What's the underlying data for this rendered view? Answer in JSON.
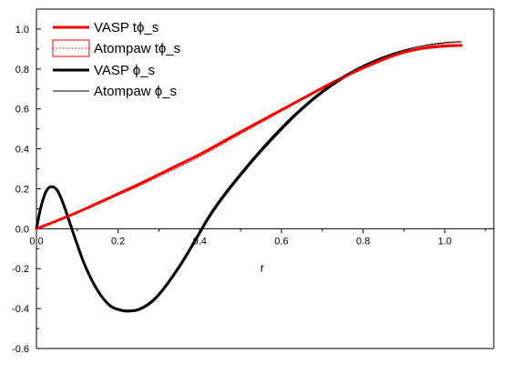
{
  "chart_data": {
    "type": "line",
    "title": "",
    "xlabel": "r",
    "ylabel": "",
    "xlim": [
      0,
      1.12
    ],
    "ylim": [
      -0.6,
      1.1
    ],
    "x_ticks": [
      "0.0",
      "0.2",
      "0.4",
      "0.6",
      "0.8",
      "1.0"
    ],
    "y_ticks": [
      "1.0",
      "0.8",
      "0.6",
      "0.4",
      "0.2",
      "0.0",
      "-0.2",
      "-0.4",
      "-0.6"
    ],
    "grid": false,
    "legend_position": "top-left",
    "series": [
      {
        "name": "VASP tϕ_s",
        "color": "#ff0000",
        "style": "solid",
        "x": [
          0.0,
          0.05,
          0.1,
          0.15,
          0.2,
          0.25,
          0.3,
          0.35,
          0.4,
          0.45,
          0.5,
          0.55,
          0.6,
          0.65,
          0.7,
          0.75,
          0.8,
          0.85,
          0.9,
          0.95,
          1.0,
          1.04
        ],
        "y": [
          0.0,
          0.04,
          0.082,
          0.128,
          0.175,
          0.222,
          0.272,
          0.322,
          0.372,
          0.428,
          0.485,
          0.54,
          0.595,
          0.65,
          0.705,
          0.757,
          0.805,
          0.848,
          0.883,
          0.905,
          0.915,
          0.918
        ]
      },
      {
        "name": "Atompaw tϕ_s",
        "color": "#ff0000",
        "style": "dotted",
        "x": [
          0.0,
          0.05,
          0.1,
          0.15,
          0.2,
          0.25,
          0.3,
          0.35,
          0.4,
          0.45,
          0.5,
          0.55,
          0.6,
          0.65,
          0.7,
          0.75,
          0.8,
          0.85,
          0.9,
          0.95,
          1.0,
          1.04
        ],
        "y": [
          0.0,
          0.038,
          0.078,
          0.122,
          0.168,
          0.213,
          0.262,
          0.31,
          0.362,
          0.418,
          0.475,
          0.532,
          0.588,
          0.645,
          0.7,
          0.754,
          0.805,
          0.85,
          0.888,
          0.913,
          0.928,
          0.935
        ]
      },
      {
        "name": "VASP ϕ_s",
        "color": "#000000",
        "style": "solid-thick",
        "x": [
          0.0,
          0.01,
          0.02,
          0.03,
          0.04,
          0.05,
          0.06,
          0.07,
          0.08,
          0.1,
          0.12,
          0.15,
          0.18,
          0.21,
          0.23,
          0.25,
          0.28,
          0.31,
          0.35,
          0.38,
          0.42,
          0.45,
          0.5,
          0.55,
          0.6,
          0.65,
          0.7,
          0.75,
          0.8,
          0.85,
          0.9,
          0.95,
          1.0,
          1.04
        ],
        "y": [
          0.0,
          0.1,
          0.17,
          0.205,
          0.21,
          0.195,
          0.155,
          0.1,
          0.04,
          -0.08,
          -0.19,
          -0.31,
          -0.385,
          -0.41,
          -0.412,
          -0.405,
          -0.37,
          -0.305,
          -0.19,
          -0.09,
          0.05,
          0.14,
          0.27,
          0.39,
          0.5,
          0.6,
          0.685,
          0.755,
          0.81,
          0.853,
          0.885,
          0.905,
          0.915,
          0.918
        ]
      },
      {
        "name": "Atompaw ϕ_s",
        "color": "#000000",
        "style": "solid-thin",
        "x": [
          0.0,
          0.01,
          0.02,
          0.03,
          0.04,
          0.05,
          0.06,
          0.07,
          0.08,
          0.1,
          0.12,
          0.15,
          0.18,
          0.21,
          0.23,
          0.25,
          0.28,
          0.31,
          0.35,
          0.38,
          0.42,
          0.45,
          0.5,
          0.55,
          0.6,
          0.65,
          0.7,
          0.75,
          0.8,
          0.85,
          0.9,
          0.95,
          1.0,
          1.04
        ],
        "y": [
          0.0,
          0.1,
          0.17,
          0.205,
          0.21,
          0.195,
          0.155,
          0.1,
          0.04,
          -0.078,
          -0.186,
          -0.305,
          -0.38,
          -0.405,
          -0.407,
          -0.4,
          -0.363,
          -0.297,
          -0.18,
          -0.08,
          0.06,
          0.15,
          0.28,
          0.4,
          0.51,
          0.608,
          0.692,
          0.762,
          0.818,
          0.862,
          0.895,
          0.918,
          0.932,
          0.937
        ]
      }
    ]
  }
}
